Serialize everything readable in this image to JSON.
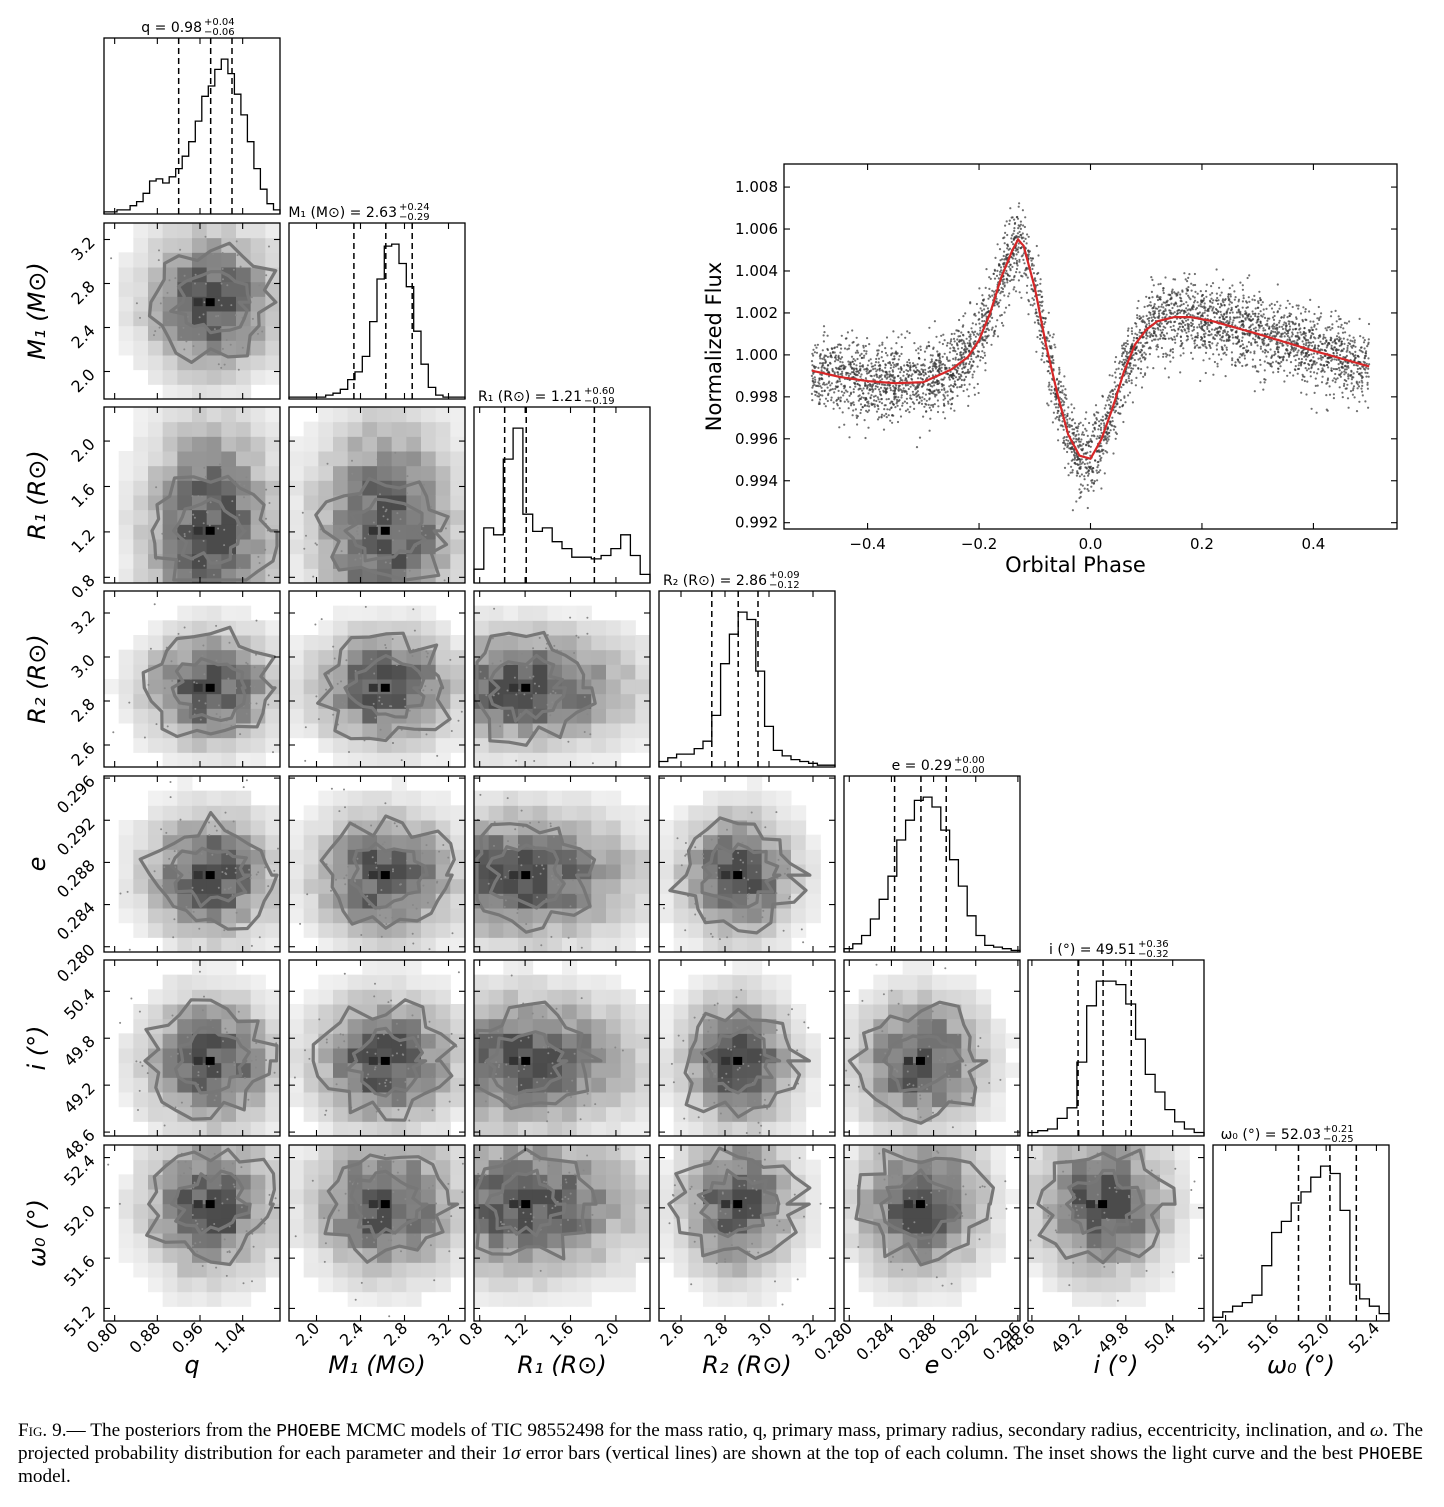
{
  "figure": {
    "caption_lead": "Fig. 9.—",
    "caption_parts": {
      "p1": " The posteriors from the ",
      "code1": "PHOEBE",
      "p2": " MCMC models of TIC 98552498 for the mass ratio, q, primary mass, primary radius, secondary radius, eccentricity, inclination, and ",
      "omega": "ω",
      "p3": ". The projected probability distribution for each parameter and their 1",
      "sigma": "σ",
      "p4": " error bars (vertical lines) are shown at the top of each column. The inset shows the light curve and the best ",
      "code2": "PHOEBE",
      "p5": " model."
    }
  },
  "chart_data": [
    {
      "type": "corner",
      "parameters": [
        {
          "key": "q",
          "label": "q",
          "title": "q = 0.98",
          "plus": "+0.04",
          "minus": "−0.06",
          "range": [
            0.78,
            1.11
          ],
          "ticks": [
            "0.80",
            "0.88",
            "0.96",
            "1.04"
          ],
          "tick_values": [
            0.8,
            0.88,
            0.96,
            1.04
          ],
          "quantiles": [
            0.92,
            0.98,
            1.02
          ],
          "hist": [
            1,
            1,
            2,
            2,
            4,
            6,
            10,
            16,
            17,
            15,
            18,
            22,
            28,
            35,
            45,
            57,
            62,
            70,
            75,
            68,
            58,
            48,
            35,
            22,
            12,
            5,
            2
          ]
        },
        {
          "key": "M1",
          "label": "M₁ (M⊙)",
          "title": "M₁ (M⊙) = 2.63",
          "plus": "+0.24",
          "minus": "−0.29",
          "range": [
            1.75,
            3.35
          ],
          "ticks": [
            "2.0",
            "2.4",
            "2.8",
            "3.2"
          ],
          "tick_values": [
            2.0,
            2.4,
            2.8,
            3.2
          ],
          "quantiles": [
            2.34,
            2.63,
            2.87
          ],
          "hist": [
            1,
            1,
            1,
            1,
            1,
            2,
            3,
            5,
            10,
            14,
            22,
            40,
            62,
            79,
            80,
            70,
            58,
            35,
            18,
            6,
            2,
            1,
            1,
            1
          ]
        },
        {
          "key": "R1",
          "label": "R₁ (R⊙)",
          "title": "R₁ (R⊙) = 1.21",
          "plus": "+0.60",
          "minus": "−0.19",
          "range": [
            0.75,
            2.3
          ],
          "ticks": [
            "0.8",
            "1.2",
            "1.6",
            "2.0"
          ],
          "tick_values": [
            0.8,
            1.2,
            1.6,
            2.0
          ],
          "quantiles": [
            1.02,
            1.21,
            1.81
          ],
          "hist": [
            8,
            32,
            28,
            72,
            90,
            40,
            30,
            32,
            24,
            20,
            15,
            15,
            14,
            16,
            20,
            28,
            16,
            5
          ]
        },
        {
          "key": "R2",
          "label": "R₂ (R⊙)",
          "title": "R₂ (R⊙) = 2.86",
          "plus": "+0.09",
          "minus": "−0.12",
          "range": [
            2.5,
            3.3
          ],
          "ticks": [
            "2.6",
            "2.8",
            "3.0",
            "3.2"
          ],
          "tick_values": [
            2.6,
            2.8,
            3.0,
            3.2
          ],
          "quantiles": [
            2.74,
            2.86,
            2.95
          ],
          "hist": [
            3,
            5,
            7,
            7,
            10,
            14,
            28,
            56,
            72,
            84,
            80,
            52,
            22,
            9,
            6,
            4,
            3,
            2,
            1,
            1
          ]
        },
        {
          "key": "e",
          "label": "e",
          "title": "e = 0.29",
          "plus": "+0.00",
          "minus": "−0.00",
          "range": [
            0.2795,
            0.2962
          ],
          "ticks": [
            "0.280",
            "0.284",
            "0.288",
            "0.292",
            "0.296"
          ],
          "tick_values": [
            0.28,
            0.284,
            0.288,
            0.292,
            0.296
          ],
          "quantiles": [
            0.2843,
            0.2868,
            0.2892
          ],
          "hist": [
            2,
            5,
            10,
            20,
            32,
            46,
            68,
            80,
            92,
            94,
            88,
            74,
            56,
            40,
            22,
            10,
            4,
            3,
            2,
            1
          ]
        },
        {
          "key": "i",
          "label": "i (°)",
          "title": "i (°) = 49.51",
          "plus": "+0.36",
          "minus": "−0.32",
          "range": [
            48.55,
            50.8
          ],
          "ticks": [
            "48.6",
            "49.2",
            "49.8",
            "50.4"
          ],
          "tick_values": [
            48.6,
            49.2,
            49.8,
            50.4
          ],
          "quantiles": [
            49.19,
            49.51,
            49.87
          ],
          "hist": [
            2,
            3,
            4,
            10,
            16,
            42,
            74,
            88,
            88,
            86,
            75,
            55,
            35,
            25,
            15,
            8,
            4,
            2
          ]
        },
        {
          "key": "w0",
          "label": "ω₀ (°)",
          "title": "ω₀ (°) = 52.03",
          "plus": "+0.21",
          "minus": "−0.25",
          "range": [
            51.1,
            52.5
          ],
          "ticks": [
            "51.2",
            "51.6",
            "52.0",
            "52.4"
          ],
          "tick_values": [
            51.2,
            51.6,
            52.0,
            52.4
          ],
          "quantiles": [
            51.78,
            52.03,
            52.24
          ],
          "hist": [
            2,
            5,
            8,
            10,
            14,
            30,
            48,
            54,
            64,
            70,
            78,
            84,
            80,
            60,
            20,
            12,
            8,
            4
          ]
        }
      ]
    },
    {
      "type": "scatter",
      "title": "",
      "xlabel": "Orbital Phase",
      "ylabel": "Normalized Flux",
      "xlim": [
        -0.55,
        0.55
      ],
      "ylim": [
        0.9917,
        1.0091
      ],
      "xticks": [
        "−0.4",
        "−0.2",
        "0.0",
        "0.2",
        "0.4"
      ],
      "xtick_values": [
        -0.4,
        -0.2,
        0.0,
        0.2,
        0.4
      ],
      "yticks": [
        "0.992",
        "0.994",
        "0.996",
        "0.998",
        "1.000",
        "1.002",
        "1.004",
        "1.006",
        "1.008"
      ],
      "ytick_values": [
        0.992,
        0.994,
        0.996,
        0.998,
        1.0,
        1.002,
        1.004,
        1.006,
        1.008
      ],
      "data_points": 4200,
      "data_color": "#333333",
      "model_color": "#d62728",
      "model": {
        "x": [
          -0.5,
          -0.45,
          -0.4,
          -0.35,
          -0.3,
          -0.25,
          -0.22,
          -0.2,
          -0.18,
          -0.16,
          -0.14,
          -0.13,
          -0.12,
          -0.1,
          -0.08,
          -0.06,
          -0.04,
          -0.02,
          0.0,
          0.02,
          0.04,
          0.06,
          0.08,
          0.1,
          0.12,
          0.15,
          0.18,
          0.22,
          0.3,
          0.4,
          0.5
        ],
        "y": [
          0.99925,
          0.99895,
          0.99875,
          0.99865,
          0.9987,
          0.9993,
          0.9999,
          1.0007,
          1.002,
          1.0037,
          1.005,
          1.0055,
          1.0052,
          1.0032,
          1.0005,
          0.9982,
          0.9962,
          0.9952,
          0.99505,
          0.996,
          0.9975,
          0.9992,
          1.0005,
          1.0012,
          1.0016,
          1.0018,
          1.0018,
          1.0016,
          1.001,
          1.0002,
          0.99945
        ]
      },
      "scatter_sigma": 0.0009
    }
  ]
}
